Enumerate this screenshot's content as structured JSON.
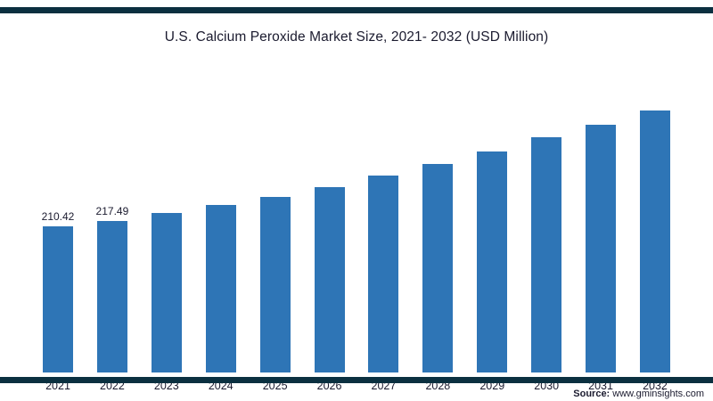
{
  "title": "U.S. Calcium Peroxide Market Size, 2021- 2032 (USD Million)",
  "source": {
    "prefix": "Source:",
    "text": " www.gminsights.com"
  },
  "colors": {
    "bar": "#2e75b6",
    "border": "#0b3040",
    "text": "#1b1b2f"
  },
  "chart_data": {
    "type": "bar",
    "title": "U.S. Calcium Peroxide Market Size, 2021- 2032 (USD Million)",
    "xlabel": "",
    "ylabel": "USD Million",
    "categories": [
      "2021",
      "2022",
      "2023",
      "2024",
      "2025",
      "2026",
      "2027",
      "2028",
      "2029",
      "2030",
      "2031",
      "2032"
    ],
    "values": [
      210.42,
      217.49,
      229,
      241,
      253,
      267,
      283,
      300,
      318,
      338,
      357,
      377
    ],
    "data_labels": [
      "210.42",
      "217.49",
      "",
      "",
      "",
      "",
      "",
      "",
      "",
      "",
      "",
      ""
    ],
    "ylim": [
      0,
      400
    ],
    "grid": false,
    "legend": false,
    "axis_lines": false
  }
}
